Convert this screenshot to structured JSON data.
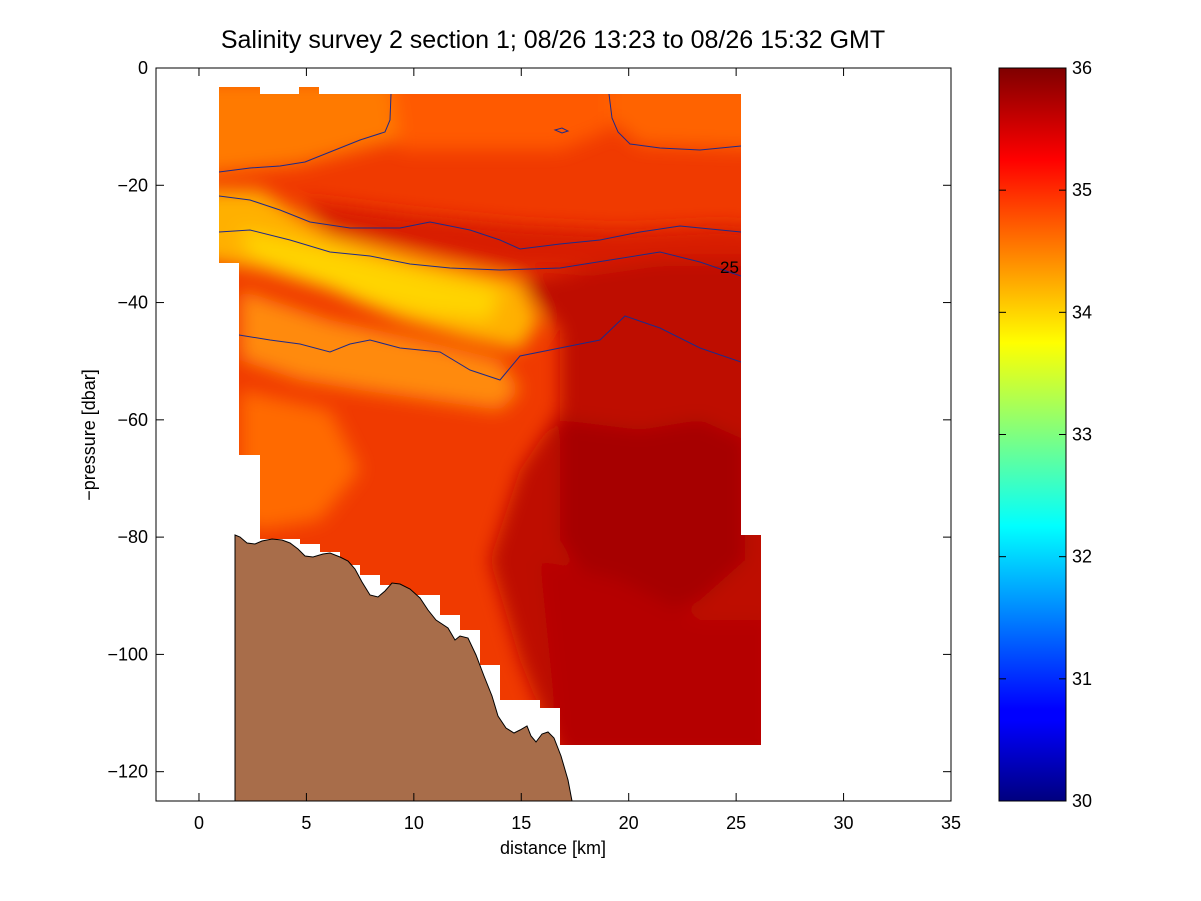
{
  "chart_data": {
    "type": "heatmap",
    "title": "Salinity survey 2 section 1; 08/26 13:23 to 08/26 15:32 GMT",
    "xlabel": "distance [km]",
    "ylabel": "−pressure [dbar]",
    "xlim": [
      -2,
      35
    ],
    "ylim": [
      -125,
      0
    ],
    "x_ticks": [
      "0",
      "5",
      "10",
      "15",
      "20",
      "25",
      "30",
      "35"
    ],
    "y_ticks": [
      "0",
      "−20",
      "−40",
      "−60",
      "−80",
      "−100",
      "−120"
    ],
    "colorbar": {
      "range": [
        30,
        36
      ],
      "ticks": [
        "30",
        "31",
        "32",
        "33",
        "34",
        "35",
        "36"
      ],
      "colormap": "jet"
    },
    "contour_label": "25",
    "data_domain": {
      "x_range": [
        0.8,
        26.1
      ],
      "surface_depth": -4.5,
      "deepest_cast": -115.5
    },
    "colors": {
      "bathymetry_fill": "#a86d4a",
      "contour_line": "#1e2a8a",
      "background": "#ffffff"
    }
  }
}
